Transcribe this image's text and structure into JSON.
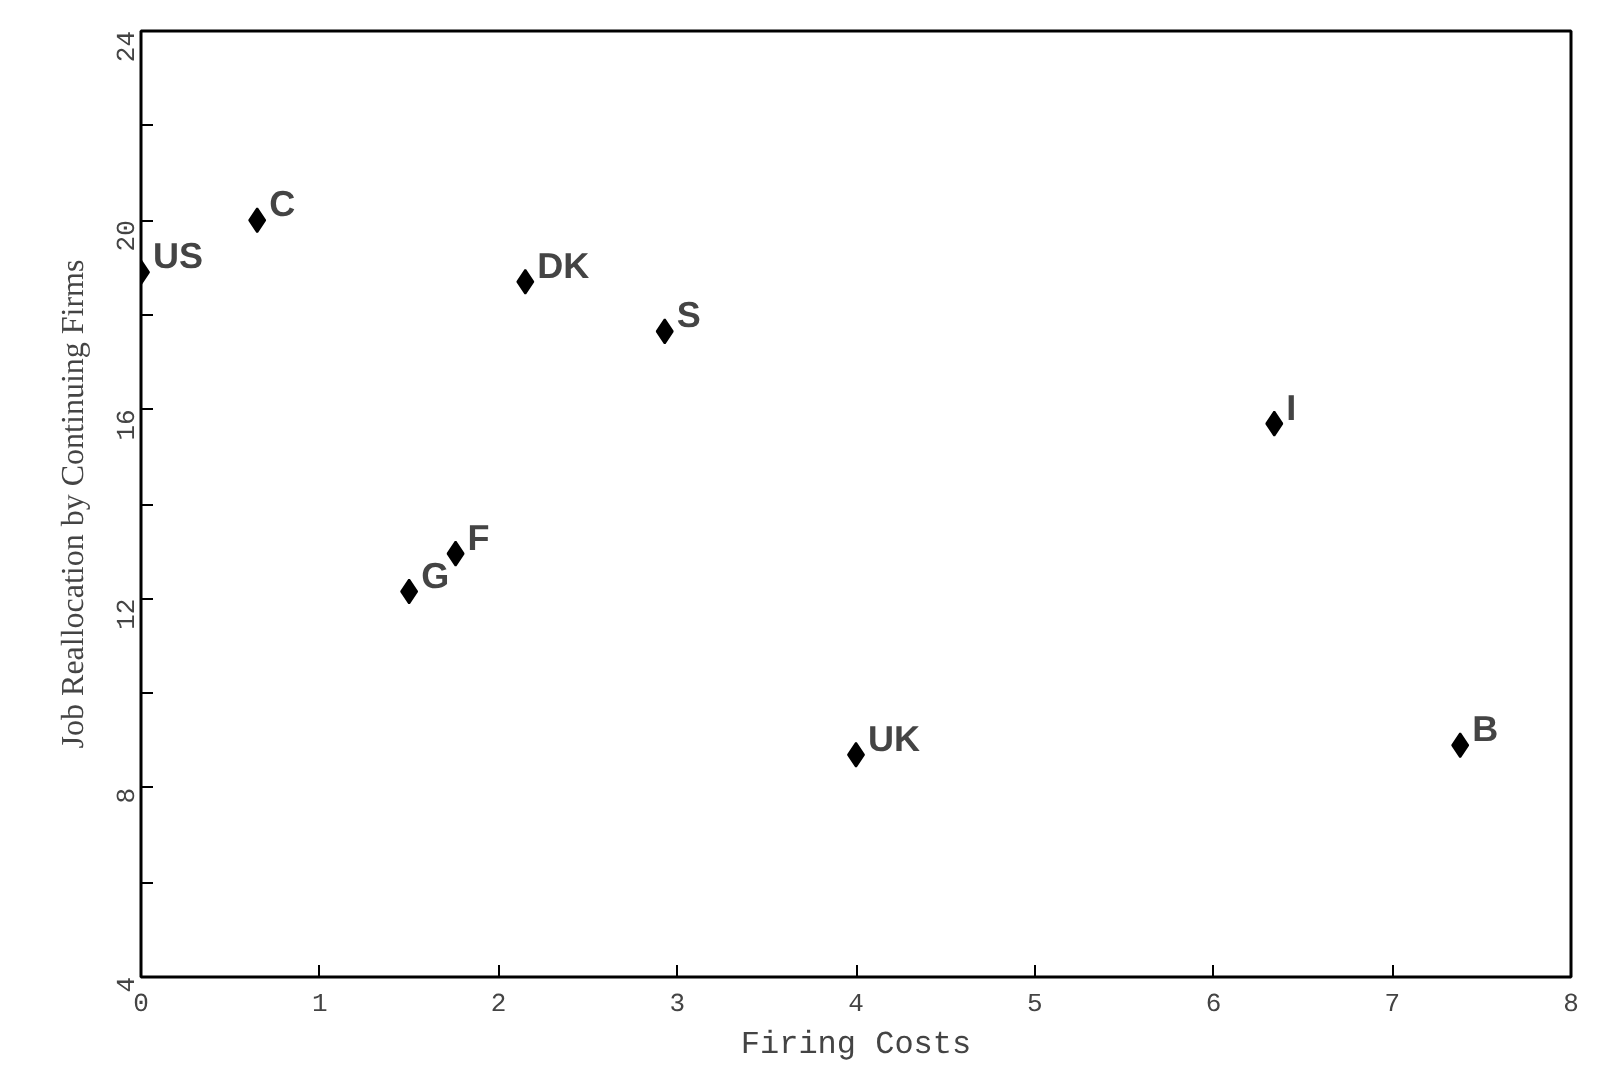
{
  "chart_data": {
    "type": "scatter",
    "xlabel": "Firing Costs",
    "ylabel": "Job Reallocation by Continuing Firms",
    "x": [
      0,
      0.65,
      2.15,
      2.93,
      6.34,
      1.76,
      1.5,
      4.0,
      7.38
    ],
    "series": [
      {
        "color": "#000000",
        "values": [
          18.9,
          20.0,
          18.7,
          17.65,
          15.7,
          12.95,
          12.15,
          8.7,
          8.9
        ]
      }
    ],
    "marker": "diamond",
    "grid": false,
    "xlim": [
      0,
      8
    ],
    "xticks": [
      0,
      1,
      2,
      3,
      4,
      5,
      6,
      7,
      8
    ],
    "ylim": [
      4,
      24
    ],
    "yticks": [
      4,
      {
        "value": 6,
        "label": null
      },
      8,
      {
        "value": 10,
        "label": null
      },
      12,
      {
        "value": 14,
        "label": null
      },
      16,
      {
        "value": 18,
        "label": null
      },
      20,
      {
        "value": 22,
        "label": null
      },
      24
    ],
    "annotations": [
      {
        "text": "US",
        "x": 0,
        "y": 18.9
      },
      {
        "text": "C",
        "x": 0.65,
        "y": 20.0
      },
      {
        "text": "DK",
        "x": 2.15,
        "y": 18.7
      },
      {
        "text": "S",
        "x": 2.93,
        "y": 17.65
      },
      {
        "text": "I",
        "x": 6.34,
        "y": 15.7
      },
      {
        "text": "F",
        "x": 1.76,
        "y": 12.95
      },
      {
        "text": "G",
        "x": 1.5,
        "y": 12.15
      },
      {
        "text": "UK",
        "x": 4.0,
        "y": 8.7
      },
      {
        "text": "B",
        "x": 7.38,
        "y": 8.9
      }
    ]
  }
}
